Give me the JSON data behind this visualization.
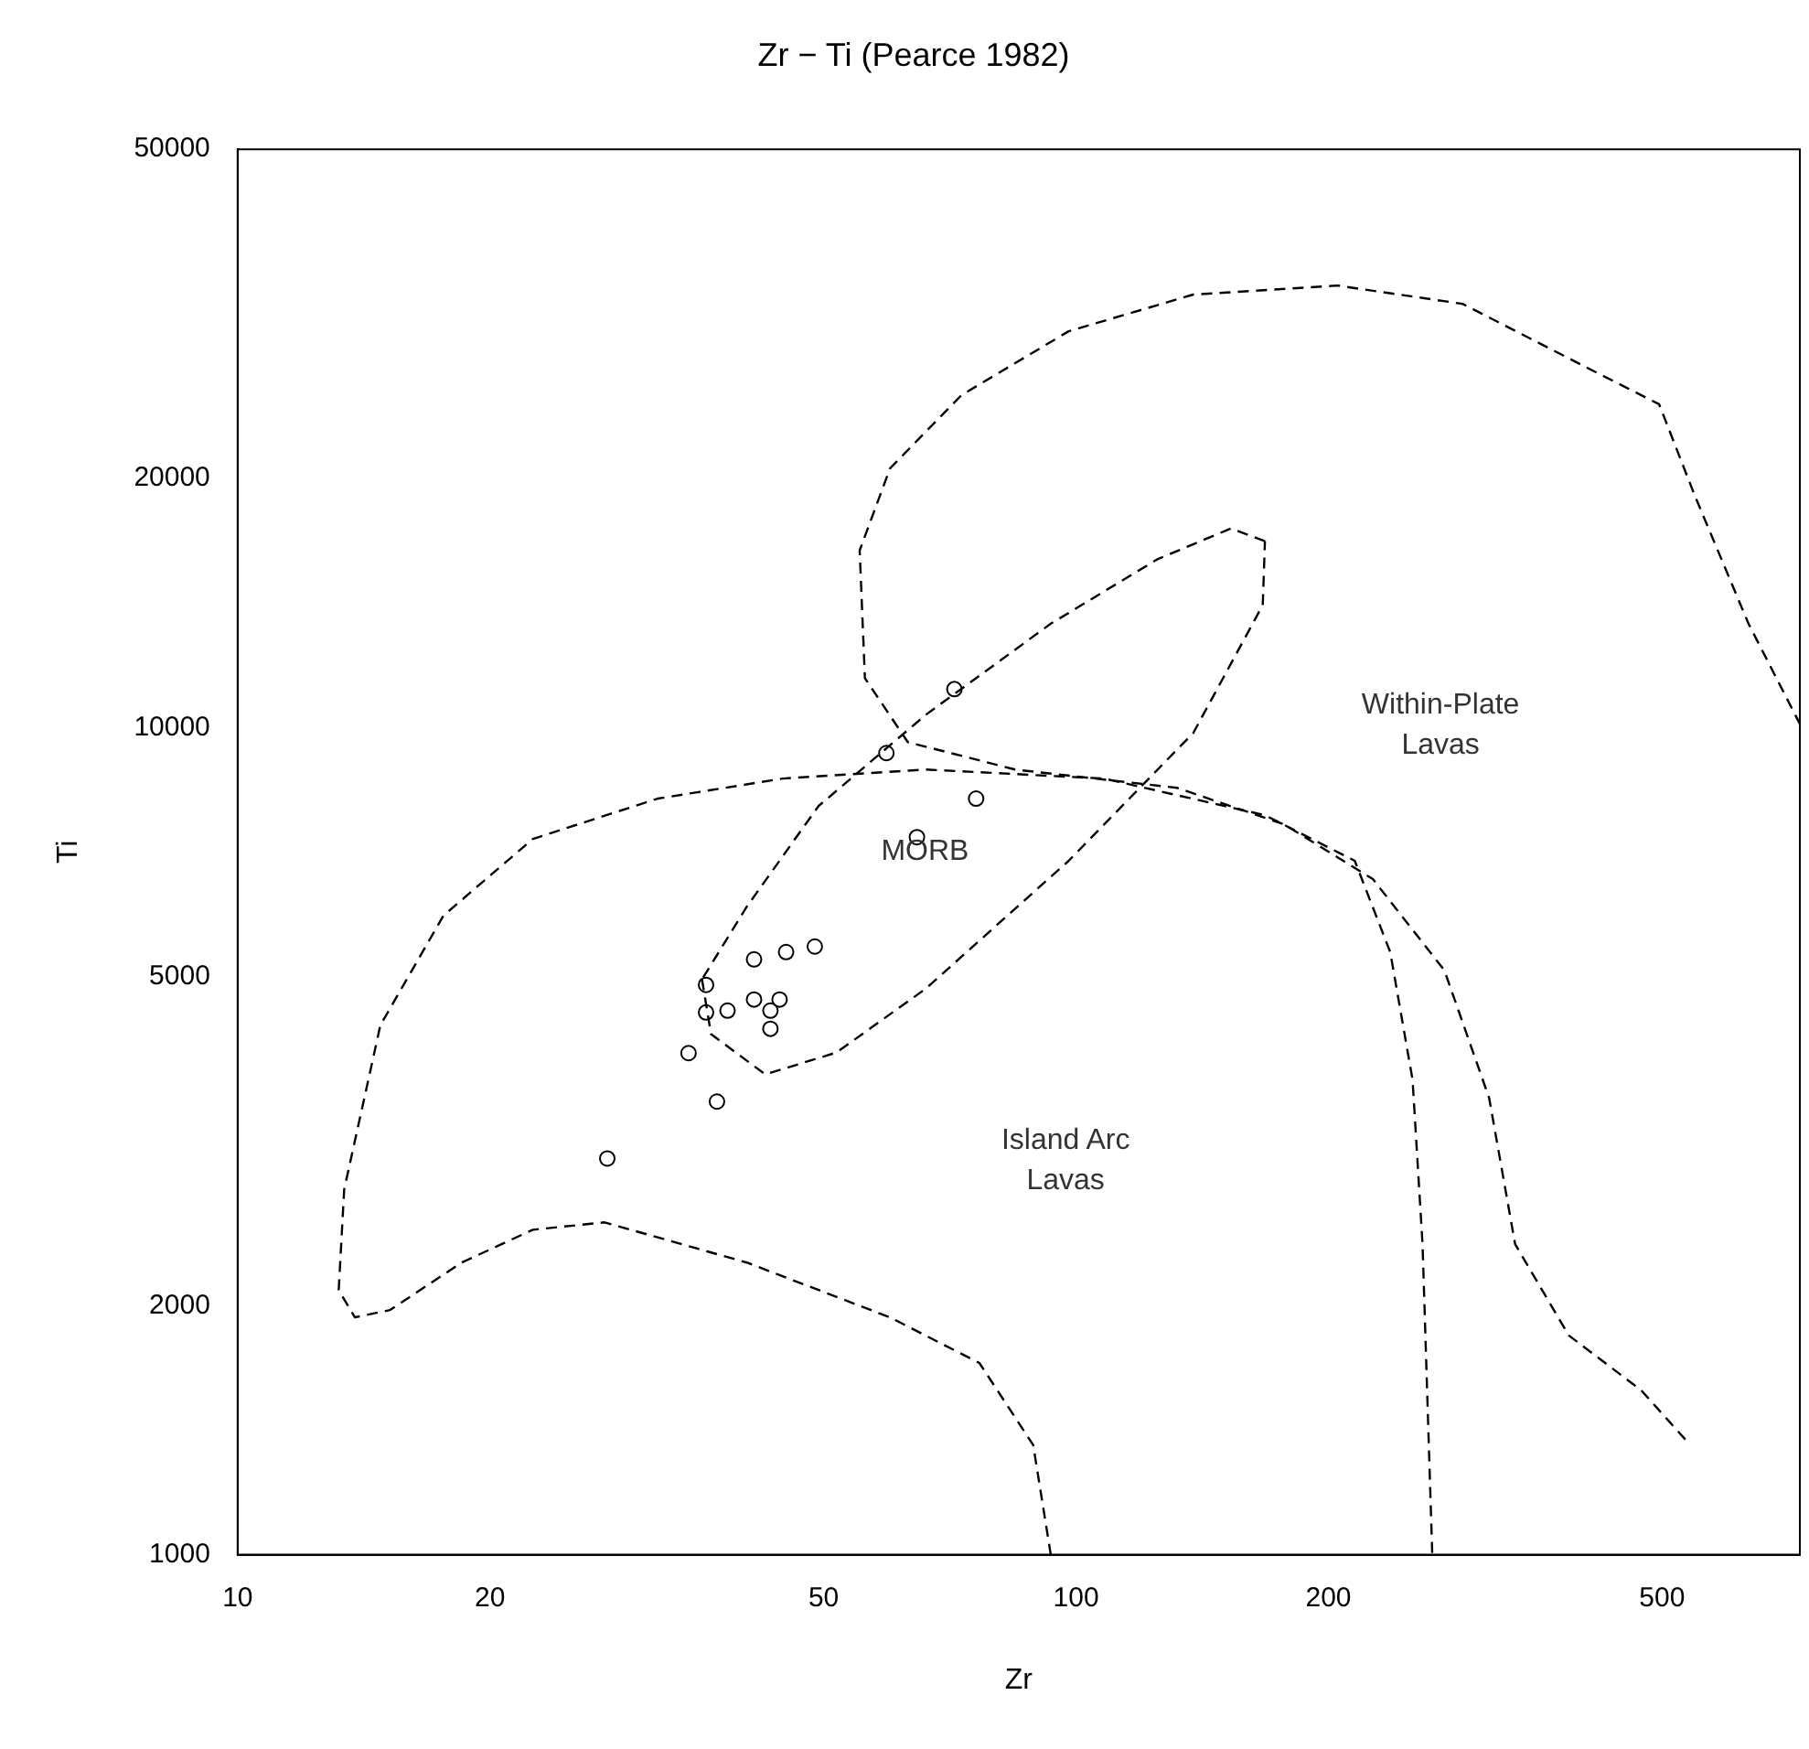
{
  "chart_data": {
    "type": "scatter",
    "title": "Zr − Ti (Pearce 1982)",
    "xlabel": "Zr",
    "ylabel": "Ti",
    "log": "xy",
    "xlim": [
      10,
      730
    ],
    "ylim": [
      1000,
      50000
    ],
    "xticks": [
      10,
      20,
      50,
      100,
      200,
      500
    ],
    "yticks": [
      1000,
      2000,
      5000,
      10000,
      20000,
      50000
    ],
    "grid": false,
    "legend": false,
    "annotations": [
      "Within-Plate\nLavas",
      "MORB",
      "Island Arc\nLavas"
    ],
    "series": [
      {
        "type": "scatter",
        "color": "#000000",
        "marker": "circle",
        "x": [
          27.6,
          34.5,
          36.2,
          36.2,
          37.3,
          38.4,
          41.3,
          41.3,
          43.2,
          43.2,
          44.3,
          45.1,
          48.8,
          59.4,
          64.6,
          71.6,
          76.0
        ],
        "values": [
          3013,
          4040,
          4884,
          4524,
          3530,
          4547,
          5244,
          4690,
          4547,
          4323,
          4690,
          5352,
          5435,
          9313,
          7369,
          11127,
          8204
        ]
      },
      {
        "type": "line",
        "color": "#000000",
        "marker": "none",
        "line_style": "dashed",
        "x": [
          533,
          472,
          387,
          334,
          311,
          275,
          226,
          177,
          132,
          84.6,
          63.0,
          56.0,
          55.2,
          60.0,
          73.0,
          98.0,
          138,
          205,
          289,
          407,
          496,
          547,
          634,
          730
        ],
        "values": [
          1378,
          1581,
          1841,
          2373,
          3564,
          5086,
          6557,
          7638,
          8453,
          8895,
          9601,
          11470,
          16370,
          20570,
          25220,
          30130,
          33370,
          34220,
          32520,
          27220,
          24590,
          19070,
          13350,
          10100
        ]
      },
      {
        "type": "line",
        "color": "#000000",
        "marker": "none",
        "line_style": "dashed",
        "x": [
          93.3,
          88.9,
          76.7,
          60.0,
          40.5,
          27.4,
          22.5,
          18.5,
          15.2,
          13.8,
          13.2,
          13.4,
          14.8,
          17.6,
          22.5,
          31.7,
          44.7,
          66.2,
          108,
          168,
          215,
          237,
          252,
          259,
          266
        ],
        "values": [
          1000,
          1357,
          1705,
          1936,
          2255,
          2522,
          2471,
          2255,
          1976,
          1936,
          2089,
          2764,
          4366,
          5924,
          7333,
          8204,
          8675,
          8895,
          8675,
          7834,
          6900,
          5352,
          3750,
          2373,
          1000
        ]
      },
      {
        "type": "line",
        "color": "#000000",
        "marker": "none",
        "line_style": "dashed",
        "x": [
          35.8,
          36.7,
          42.6,
          51.8,
          66.2,
          98.0,
          138,
          167,
          168
        ],
        "values": [
          4960,
          4259,
          3807,
          4047,
          4834,
          6900,
          9849,
          14060,
          16800
        ]
      },
      {
        "type": "line",
        "color": "#000000",
        "marker": "none",
        "line_style": "dashed",
        "x": [
          168,
          153,
          125,
          93.3,
          66.2,
          49.3,
          40.5,
          35.8
        ],
        "values": [
          16800,
          17400,
          15970,
          13350,
          10360,
          8035,
          6076,
          4960
        ]
      }
    ]
  }
}
